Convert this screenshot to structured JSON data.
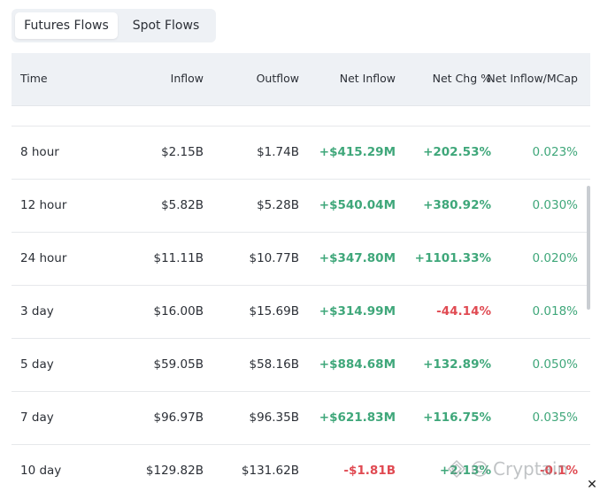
{
  "tabs": [
    {
      "label": "Futures Flows",
      "active": true
    },
    {
      "label": "Spot Flows",
      "active": false
    }
  ],
  "columns": {
    "time": "Time",
    "inflow": "Inflow",
    "outflow": "Outflow",
    "net_inflow": "Net Inflow",
    "net_chg": "Net Chg %",
    "net_inflow_mcap": "Net Inflow/MCap"
  },
  "rows": [
    {
      "time": "8 hour",
      "inflow": "$2.15B",
      "outflow": "$1.74B",
      "net_inflow": "+$415.29M",
      "net_chg": "+202.53%",
      "net_inflow_mcap": "0.023%"
    },
    {
      "time": "12 hour",
      "inflow": "$5.82B",
      "outflow": "$5.28B",
      "net_inflow": "+$540.04M",
      "net_chg": "+380.92%",
      "net_inflow_mcap": "0.030%"
    },
    {
      "time": "24 hour",
      "inflow": "$11.11B",
      "outflow": "$10.77B",
      "net_inflow": "+$347.80M",
      "net_chg": "+1101.33%",
      "net_inflow_mcap": "0.020%"
    },
    {
      "time": "3 day",
      "inflow": "$16.00B",
      "outflow": "$15.69B",
      "net_inflow": "+$314.99M",
      "net_chg": "-44.14%",
      "net_inflow_mcap": "0.018%"
    },
    {
      "time": "5 day",
      "inflow": "$59.05B",
      "outflow": "$58.16B",
      "net_inflow": "+$884.68M",
      "net_chg": "+132.89%",
      "net_inflow_mcap": "0.050%"
    },
    {
      "time": "7 day",
      "inflow": "$96.97B",
      "outflow": "$96.35B",
      "net_inflow": "+$621.83M",
      "net_chg": "+116.75%",
      "net_inflow_mcap": "0.035%"
    },
    {
      "time": "10 day",
      "inflow": "$129.82B",
      "outflow": "$131.62B",
      "net_inflow": "-$1.81B",
      "net_chg": "+2.13%",
      "net_inflow_mcap": "-0.1%"
    }
  ],
  "watermark": {
    "text": "Cryptain",
    "icon": "cryptain-logo-icon"
  },
  "close_icon": {
    "glyph": "✕",
    "icon": "close-icon"
  },
  "colors": {
    "positive": "#3fa77a",
    "negative": "#e04a52",
    "header_bg": "#eef1f5"
  }
}
